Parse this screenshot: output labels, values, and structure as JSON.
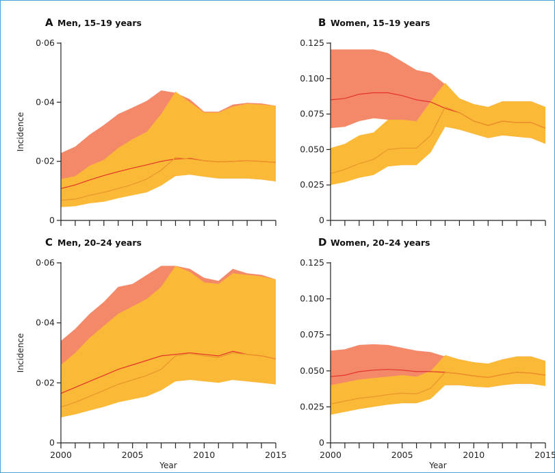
{
  "chart_data": [
    {
      "type": "area",
      "panel": "A",
      "title": "Men, 15–19 years",
      "xlabel": "",
      "ylabel": "Incidence",
      "ylim": [
        0,
        0.06
      ],
      "yticks": [
        "0",
        "0·02",
        "0·04",
        "0·06"
      ],
      "xticks": [],
      "x": [
        2000,
        2001,
        2002,
        2003,
        2004,
        2005,
        2006,
        2007,
        2008,
        2009,
        2010,
        2011,
        2012,
        2013,
        2014,
        2015
      ],
      "series": [
        {
          "color": "#f4896a",
          "upper": [
            0.0228,
            0.025,
            0.029,
            0.0323,
            0.036,
            0.0382,
            0.0405,
            0.044,
            0.0432,
            0.041,
            0.0368,
            0.0368,
            0.0392,
            0.0398,
            0.0396,
            0.0388
          ],
          "central": [
            0.0108,
            0.012,
            0.0137,
            0.0152,
            0.0165,
            0.0177,
            0.0188,
            0.02,
            0.0208,
            0.021,
            0.0202,
            0.0198,
            0.02,
            0.0202,
            0.02,
            0.0196
          ],
          "lower": [
            0.0065,
            0.007,
            0.008,
            0.009,
            0.01,
            0.0112,
            0.0125,
            0.0135,
            0.015,
            0.0155,
            0.0148,
            0.0142,
            0.0142,
            0.0142,
            0.0138,
            0.0132
          ]
        },
        {
          "color": "#fbb938",
          "upper": [
            0.014,
            0.015,
            0.0185,
            0.0205,
            0.0245,
            0.0275,
            0.03,
            0.036,
            0.0436,
            0.04,
            0.0365,
            0.0365,
            0.0385,
            0.0395,
            0.0392,
            0.0388
          ],
          "central": [
            0.0068,
            0.0072,
            0.0085,
            0.0095,
            0.0108,
            0.0122,
            0.014,
            0.017,
            0.0213,
            0.0208,
            0.0202,
            0.0198,
            0.02,
            0.0202,
            0.02,
            0.0196
          ],
          "lower": [
            0.0045,
            0.0048,
            0.0058,
            0.0063,
            0.0075,
            0.0085,
            0.0095,
            0.0118,
            0.015,
            0.0155,
            0.0148,
            0.0142,
            0.0142,
            0.0142,
            0.0138,
            0.0132
          ]
        }
      ]
    },
    {
      "type": "area",
      "panel": "B",
      "title": "Women, 15–19 years",
      "xlabel": "",
      "ylabel": "",
      "ylim": [
        0,
        0.125
      ],
      "yticks": [
        "0",
        "0.025",
        "0.050",
        "0.075",
        "0.100",
        "0.125"
      ],
      "xticks": [],
      "x": [
        2000,
        2001,
        2002,
        2003,
        2004,
        2005,
        2006,
        2007,
        2008,
        2009,
        2010,
        2011,
        2012,
        2013,
        2014,
        2015
      ],
      "series": [
        {
          "color": "#f4896a",
          "upper": [
            0.1205,
            0.1205,
            0.1205,
            0.1205,
            0.118,
            0.112,
            0.106,
            0.104,
            0.096,
            0.086,
            0.082,
            0.08,
            0.084,
            0.084,
            0.084,
            0.08
          ],
          "central": [
            0.085,
            0.086,
            0.089,
            0.09,
            0.09,
            0.088,
            0.085,
            0.0835,
            0.079,
            0.076,
            0.07,
            0.067,
            0.07,
            0.069,
            0.069,
            0.065
          ],
          "lower": [
            0.065,
            0.066,
            0.07,
            0.072,
            0.071,
            0.07,
            0.07,
            0.07,
            0.066,
            0.064,
            0.061,
            0.058,
            0.06,
            0.059,
            0.058,
            0.054
          ]
        },
        {
          "color": "#fbb938",
          "upper": [
            0.051,
            0.054,
            0.06,
            0.062,
            0.071,
            0.071,
            0.07,
            0.084,
            0.097,
            0.086,
            0.082,
            0.08,
            0.084,
            0.084,
            0.084,
            0.08
          ],
          "central": [
            0.033,
            0.036,
            0.04,
            0.043,
            0.05,
            0.051,
            0.051,
            0.06,
            0.08,
            0.076,
            0.07,
            0.067,
            0.07,
            0.069,
            0.069,
            0.065
          ],
          "lower": [
            0.025,
            0.027,
            0.03,
            0.032,
            0.038,
            0.039,
            0.039,
            0.048,
            0.066,
            0.064,
            0.061,
            0.058,
            0.06,
            0.059,
            0.058,
            0.054
          ]
        }
      ]
    },
    {
      "type": "area",
      "panel": "C",
      "title": "Men, 20–24 years",
      "xlabel": "Year",
      "ylabel": "Incidence",
      "ylim": [
        0,
        0.06
      ],
      "yticks": [
        "0",
        "0·02",
        "0·04",
        "0·06"
      ],
      "xticks": [
        "2000",
        "2005",
        "2010",
        "2015"
      ],
      "x": [
        2000,
        2001,
        2002,
        2003,
        2004,
        2005,
        2006,
        2007,
        2008,
        2009,
        2010,
        2011,
        2012,
        2013,
        2014,
        2015
      ],
      "series": [
        {
          "color": "#f4896a",
          "upper": [
            0.034,
            0.038,
            0.043,
            0.047,
            0.052,
            0.053,
            0.056,
            0.059,
            0.059,
            0.058,
            0.055,
            0.054,
            0.058,
            0.0565,
            0.056,
            0.0545
          ],
          "central": [
            0.0165,
            0.0185,
            0.0205,
            0.0225,
            0.0245,
            0.026,
            0.0275,
            0.029,
            0.0295,
            0.03,
            0.0295,
            0.029,
            0.0305,
            0.0295,
            0.029,
            0.028
          ],
          "lower": [
            0.0115,
            0.013,
            0.0145,
            0.016,
            0.0175,
            0.0185,
            0.0195,
            0.0205,
            0.0205,
            0.021,
            0.021,
            0.0205,
            0.021,
            0.0205,
            0.02,
            0.0195
          ]
        },
        {
          "color": "#fbb938",
          "upper": [
            0.026,
            0.03,
            0.035,
            0.039,
            0.043,
            0.0455,
            0.048,
            0.052,
            0.059,
            0.057,
            0.0535,
            0.053,
            0.0565,
            0.056,
            0.0555,
            0.0545
          ],
          "central": [
            0.012,
            0.0135,
            0.0155,
            0.0175,
            0.0195,
            0.021,
            0.0225,
            0.0245,
            0.029,
            0.0298,
            0.029,
            0.0285,
            0.03,
            0.0295,
            0.029,
            0.028
          ],
          "lower": [
            0.0085,
            0.0095,
            0.0108,
            0.012,
            0.0135,
            0.0145,
            0.0155,
            0.0175,
            0.0205,
            0.021,
            0.0205,
            0.02,
            0.021,
            0.0205,
            0.02,
            0.0195
          ]
        }
      ]
    },
    {
      "type": "area",
      "panel": "D",
      "title": "Women, 20–24 years",
      "xlabel": "Year",
      "ylabel": "",
      "ylim": [
        0,
        0.125
      ],
      "yticks": [
        "0",
        "0.025",
        "0.050",
        "0.075",
        "0.100",
        "0.125"
      ],
      "xticks": [
        "2000",
        "2005",
        "2010",
        "2015"
      ],
      "x": [
        2000,
        2001,
        2002,
        2003,
        2004,
        2005,
        2006,
        2007,
        2008,
        2009,
        2010,
        2011,
        2012,
        2013,
        2014,
        2015
      ],
      "series": [
        {
          "color": "#f4896a",
          "upper": [
            0.064,
            0.065,
            0.068,
            0.0685,
            0.068,
            0.066,
            0.064,
            0.063,
            0.06,
            0.058,
            0.056,
            0.055,
            0.058,
            0.06,
            0.06,
            0.057
          ],
          "central": [
            0.046,
            0.047,
            0.0495,
            0.0505,
            0.051,
            0.0505,
            0.0495,
            0.0495,
            0.049,
            0.048,
            0.0465,
            0.0455,
            0.0475,
            0.049,
            0.0485,
            0.047
          ],
          "lower": [
            0.037,
            0.038,
            0.0395,
            0.041,
            0.0415,
            0.0415,
            0.041,
            0.041,
            0.04,
            0.04,
            0.039,
            0.0385,
            0.04,
            0.041,
            0.041,
            0.0395
          ]
        },
        {
          "color": "#fbb938",
          "upper": [
            0.04,
            0.042,
            0.044,
            0.045,
            0.046,
            0.047,
            0.046,
            0.05,
            0.061,
            0.058,
            0.056,
            0.055,
            0.058,
            0.06,
            0.06,
            0.057
          ],
          "central": [
            0.027,
            0.029,
            0.031,
            0.032,
            0.0335,
            0.0345,
            0.034,
            0.038,
            0.049,
            0.048,
            0.0465,
            0.0455,
            0.0475,
            0.049,
            0.0485,
            0.047
          ],
          "lower": [
            0.0195,
            0.0215,
            0.0235,
            0.025,
            0.0265,
            0.0275,
            0.0275,
            0.0305,
            0.04,
            0.04,
            0.039,
            0.0385,
            0.04,
            0.041,
            0.041,
            0.0395
          ]
        }
      ]
    }
  ]
}
